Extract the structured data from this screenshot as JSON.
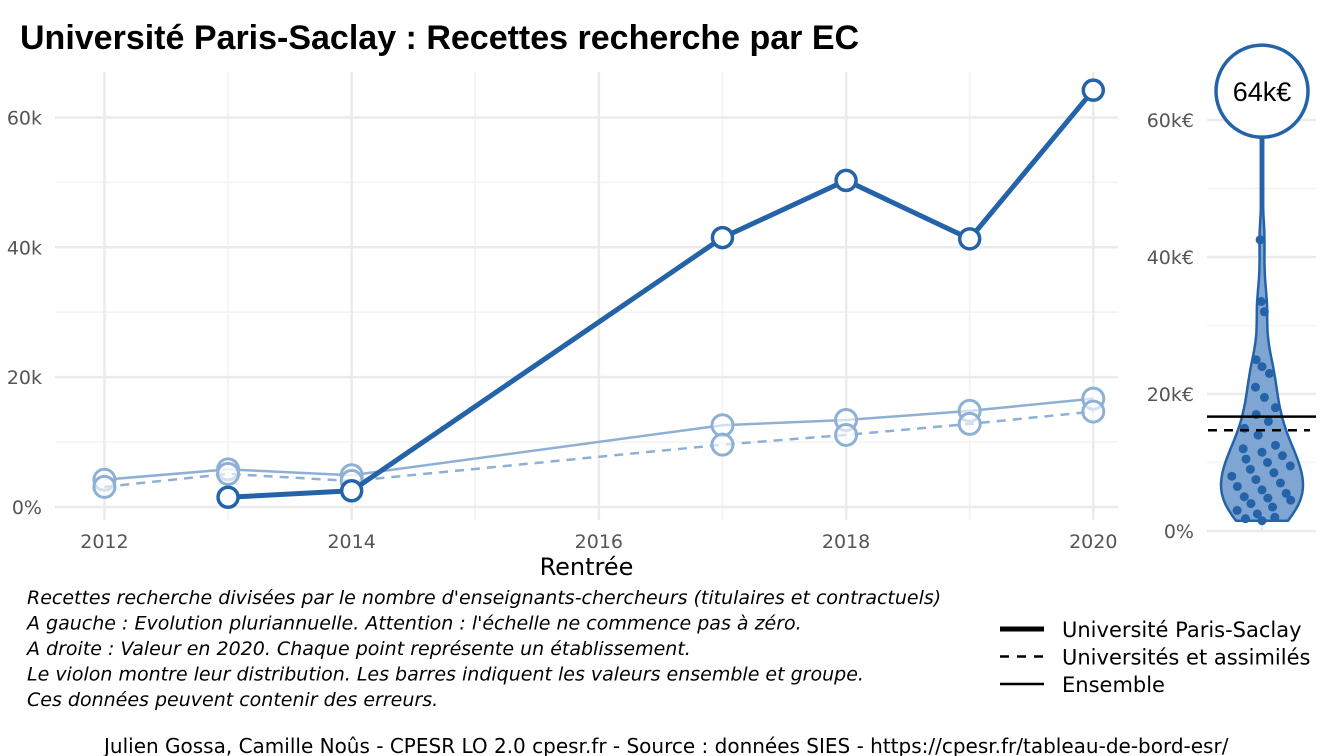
{
  "title": "Université Paris-Saclay  :  Recettes recherche par EC",
  "chart_data": [
    {
      "type": "line",
      "xlabel": "Rentrée",
      "ylabel": "",
      "x_ticks": [
        "2012",
        "2014",
        "2016",
        "2018",
        "2020"
      ],
      "y_ticks": [
        "0%",
        "20k",
        "40k",
        "60k"
      ],
      "xlim": [
        2011.6,
        2020.2
      ],
      "ylim": [
        -2000,
        67000
      ],
      "grid": true,
      "series": [
        {
          "name": "Université Paris-Saclay",
          "style": "thick-solid",
          "color": "#2463A8",
          "points": [
            [
              2013,
              1500
            ],
            [
              2014,
              2500
            ],
            [
              2017,
              41500
            ],
            [
              2018,
              50300
            ],
            [
              2019,
              41300
            ],
            [
              2020,
              64200
            ]
          ]
        },
        {
          "name": "Universités et assimilés",
          "style": "dashed",
          "color": "#8EB0D4",
          "points": [
            [
              2012,
              3100
            ],
            [
              2013,
              5100
            ],
            [
              2014,
              4000
            ],
            [
              2017,
              9600
            ],
            [
              2018,
              11100
            ],
            [
              2019,
              12800
            ],
            [
              2020,
              14700
            ]
          ]
        },
        {
          "name": "Ensemble",
          "style": "thin-solid",
          "color": "#8EB0D4",
          "points": [
            [
              2012,
              4200
            ],
            [
              2013,
              5800
            ],
            [
              2014,
              4900
            ],
            [
              2017,
              12600
            ],
            [
              2018,
              13400
            ],
            [
              2019,
              14800
            ],
            [
              2020,
              16700
            ]
          ]
        }
      ]
    },
    {
      "type": "violin",
      "ylabel": "",
      "y_ticks": [
        "0%",
        "20k€",
        "40k€",
        "60k€"
      ],
      "ylim": [
        0,
        67000
      ],
      "highlight_value": 64200,
      "highlight_label": "64k€",
      "reference_lines": [
        {
          "name": "Ensemble",
          "value": 16700,
          "style": "solid"
        },
        {
          "name": "Universités et assimilés",
          "value": 14700,
          "style": "dashed"
        }
      ],
      "points": [
        42500,
        33500,
        32000,
        25000,
        24000,
        23000,
        21000,
        19500,
        18000,
        17000,
        16000,
        15000,
        14000,
        12500,
        12000,
        11500,
        11000,
        10500,
        10000,
        9500,
        9000,
        8500,
        8000,
        7500,
        7000,
        6500,
        6000,
        5500,
        5000,
        4800,
        4500,
        4000,
        3500,
        3000,
        2500,
        2000,
        1800,
        1500
      ]
    }
  ],
  "notes": [
    "Recettes recherche divisées par le nombre d'enseignants-chercheurs (titulaires et contractuels)",
    "A gauche : Evolution pluriannuelle. Attention : l'échelle ne commence pas à zéro.",
    "A droite : Valeur en 2020. Chaque point représente un établissement.",
    "Le violon montre leur distribution. Les barres indiquent les valeurs ensemble et groupe.",
    "Ces données peuvent contenir des erreurs."
  ],
  "legend": [
    {
      "label": "Université Paris-Saclay",
      "style": "thick-solid"
    },
    {
      "label": "Universités et assimilés",
      "style": "dashed"
    },
    {
      "label": "Ensemble",
      "style": "thin-solid"
    }
  ],
  "caption": "Julien Gossa, Camille Noûs - CPESR LO 2.0 cpesr.fr - Source : données SIES - https://cpesr.fr/tableau-de-bord-esr/",
  "colors": {
    "primary": "#2463A8",
    "secondary": "#8EB0D4",
    "grid": "#EBEBEB",
    "violin_fill": "#7FA5D3"
  }
}
